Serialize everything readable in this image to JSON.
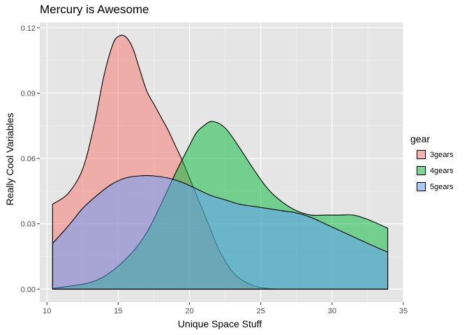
{
  "chart_data": {
    "type": "area",
    "title": "Mercury is Awesome",
    "xlabel": "Unique Space Stuff",
    "ylabel": "Really Cool Variables",
    "xlim": [
      9.5,
      35.0
    ],
    "ylim": [
      -0.006,
      0.1225
    ],
    "x_ticks": [
      10,
      15,
      20,
      25,
      30,
      35
    ],
    "y_ticks": [
      0.0,
      0.03,
      0.06,
      0.09,
      0.12
    ],
    "y_tick_labels": [
      "0.00",
      "0.03",
      "0.06",
      "0.09",
      "0.12"
    ],
    "grid": true,
    "legend": {
      "title": "gear",
      "position": "right"
    },
    "series": [
      {
        "name": "3gears",
        "color": "#F8766D",
        "x": [
          10.4,
          11.5,
          12.5,
          13.3,
          14.0,
          14.6,
          15.0,
          15.5,
          16.0,
          16.5,
          17.0,
          17.5,
          18.0,
          18.5,
          19.0,
          19.5,
          20.0,
          20.5,
          21.0,
          21.5,
          22.0,
          22.5,
          23.0,
          23.5,
          24.0,
          24.5,
          25.0,
          25.5,
          26.0,
          26.5,
          27.0,
          28.0,
          30.0,
          33.9
        ],
        "y": [
          0.039,
          0.044,
          0.055,
          0.075,
          0.098,
          0.112,
          0.116,
          0.116,
          0.111,
          0.101,
          0.091,
          0.085,
          0.079,
          0.073,
          0.066,
          0.059,
          0.051,
          0.043,
          0.035,
          0.027,
          0.019,
          0.013,
          0.008,
          0.005,
          0.003,
          0.0015,
          0.0007,
          0.0003,
          0.0001,
          0.0,
          0.0,
          0.0,
          0.0,
          0.0
        ]
      },
      {
        "name": "4gears",
        "color": "#00BA38",
        "x": [
          10.4,
          13.0,
          14.5,
          16.0,
          17.0,
          18.0,
          19.0,
          20.0,
          20.5,
          21.0,
          21.6,
          22.5,
          23.5,
          24.5,
          25.5,
          26.5,
          27.5,
          28.5,
          29.5,
          30.5,
          31.5,
          32.5,
          33.9
        ],
        "y": [
          0.0003,
          0.003,
          0.008,
          0.017,
          0.026,
          0.039,
          0.053,
          0.066,
          0.072,
          0.075,
          0.077,
          0.074,
          0.065,
          0.055,
          0.046,
          0.04,
          0.036,
          0.034,
          0.034,
          0.034,
          0.034,
          0.032,
          0.028
        ]
      },
      {
        "name": "5gears",
        "color": "#619CFF",
        "x": [
          10.4,
          11.5,
          12.5,
          13.5,
          14.5,
          15.5,
          16.5,
          17.5,
          18.5,
          19.5,
          20.5,
          21.5,
          22.5,
          23.5,
          24.5,
          25.5,
          26.5,
          27.5,
          28.5,
          29.5,
          30.5,
          31.5,
          32.5,
          33.9
        ],
        "y": [
          0.021,
          0.029,
          0.037,
          0.043,
          0.048,
          0.051,
          0.052,
          0.052,
          0.051,
          0.049,
          0.046,
          0.043,
          0.041,
          0.039,
          0.038,
          0.037,
          0.036,
          0.035,
          0.033,
          0.03,
          0.027,
          0.024,
          0.021,
          0.017
        ]
      }
    ]
  }
}
